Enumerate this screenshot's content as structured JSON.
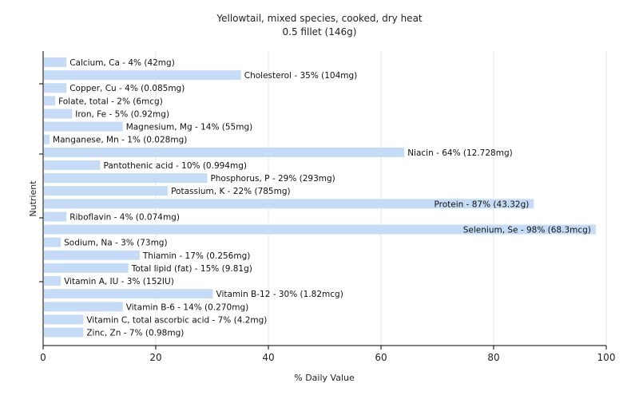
{
  "chart_data": {
    "type": "bar",
    "orientation": "horizontal",
    "title": "Yellowtail, mixed species, cooked, dry heat",
    "subtitle": "0.5 fillet (146g)",
    "xlabel": "% Daily Value",
    "ylabel": "Nutrient",
    "xlim": [
      0,
      100
    ],
    "xticks": [
      "0",
      "20",
      "40",
      "60",
      "80",
      "100"
    ],
    "grid": "vertical",
    "bar_color": "#c6dcf6",
    "categories": [
      "Calcium, Ca",
      "Cholesterol",
      "Copper, Cu",
      "Folate, total",
      "Iron, Fe",
      "Magnesium, Mg",
      "Manganese, Mn",
      "Niacin",
      "Pantothenic acid",
      "Phosphorus, P",
      "Potassium, K",
      "Protein",
      "Riboflavin",
      "Selenium, Se",
      "Sodium, Na",
      "Thiamin",
      "Total lipid (fat)",
      "Vitamin A, IU",
      "Vitamin B-12",
      "Vitamin B-6",
      "Vitamin C, total ascorbic acid",
      "Zinc, Zn"
    ],
    "values": [
      4,
      35,
      4,
      2,
      5,
      14,
      1,
      64,
      10,
      29,
      22,
      87,
      4,
      98,
      3,
      17,
      15,
      3,
      30,
      14,
      7,
      7
    ],
    "labels": [
      "Calcium, Ca - 4% (42mg)",
      "Cholesterol - 35% (104mg)",
      "Copper, Cu - 4% (0.085mg)",
      "Folate, total - 2% (6mcg)",
      "Iron, Fe - 5% (0.92mg)",
      "Magnesium, Mg - 14% (55mg)",
      "Manganese, Mn - 1% (0.028mg)",
      "Niacin - 64% (12.728mg)",
      "Pantothenic acid - 10% (0.994mg)",
      "Phosphorus, P - 29% (293mg)",
      "Potassium, K - 22% (785mg)",
      "Protein - 87% (43.32g)",
      "Riboflavin - 4% (0.074mg)",
      "Selenium, Se - 98% (68.3mcg)",
      "Sodium, Na - 3% (73mg)",
      "Thiamin - 17% (0.256mg)",
      "Total lipid (fat) - 15% (9.81g)",
      "Vitamin A, IU - 3% (152IU)",
      "Vitamin B-12 - 30% (1.82mcg)",
      "Vitamin B-6 - 14% (0.270mg)",
      "Vitamin C, total ascorbic acid - 7% (4.2mg)",
      "Zinc, Zn - 7% (0.98mg)"
    ]
  }
}
